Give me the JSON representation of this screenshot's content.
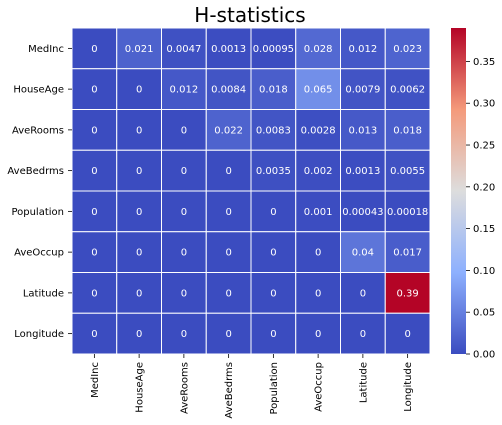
{
  "chart_data": {
    "type": "heatmap",
    "title": "H-statistics",
    "rows": [
      "MedInc",
      "HouseAge",
      "AveRooms",
      "AveBedrms",
      "Population",
      "AveOccup",
      "Latitude",
      "Longitude"
    ],
    "columns": [
      "MedInc",
      "HouseAge",
      "AveRooms",
      "AveBedrms",
      "Population",
      "AveOccup",
      "Latitude",
      "Longitude"
    ],
    "values": [
      [
        0,
        0.021,
        0.0047,
        0.0013,
        0.00095,
        0.028,
        0.012,
        0.023
      ],
      [
        0,
        0,
        0.012,
        0.0084,
        0.018,
        0.065,
        0.0079,
        0.0062
      ],
      [
        0,
        0,
        0,
        0.022,
        0.0083,
        0.0028,
        0.013,
        0.018
      ],
      [
        0,
        0,
        0,
        0,
        0.0035,
        0.002,
        0.0013,
        0.0055
      ],
      [
        0,
        0,
        0,
        0,
        0,
        0.001,
        0.00043,
        0.00018
      ],
      [
        0,
        0,
        0,
        0,
        0,
        0,
        0.04,
        0.017
      ],
      [
        0,
        0,
        0,
        0,
        0,
        0,
        0,
        0.39
      ],
      [
        0,
        0,
        0,
        0,
        0,
        0,
        0,
        0
      ]
    ],
    "labels": [
      [
        "0",
        "0.021",
        "0.0047",
        "0.0013",
        "0.00095",
        "0.028",
        "0.012",
        "0.023"
      ],
      [
        "0",
        "0",
        "0.012",
        "0.0084",
        "0.018",
        "0.065",
        "0.0079",
        "0.0062"
      ],
      [
        "0",
        "0",
        "0",
        "0.022",
        "0.0083",
        "0.0028",
        "0.013",
        "0.018"
      ],
      [
        "0",
        "0",
        "0",
        "0",
        "0.0035",
        "0.002",
        "0.0013",
        "0.0055"
      ],
      [
        "0",
        "0",
        "0",
        "0",
        "0",
        "0.001",
        "0.00043",
        "0.00018"
      ],
      [
        "0",
        "0",
        "0",
        "0",
        "0",
        "0",
        "0.04",
        "0.017"
      ],
      [
        "0",
        "0",
        "0",
        "0",
        "0",
        "0",
        "0",
        "0.39"
      ],
      [
        "0",
        "0",
        "0",
        "0",
        "0",
        "0",
        "0",
        "0"
      ]
    ],
    "colormap": "coolwarm",
    "vmin": 0,
    "vmax": 0.39,
    "colorbar_ticks": [
      0.0,
      0.05,
      0.1,
      0.15,
      0.2,
      0.25,
      0.3,
      0.35
    ],
    "colorbar_tick_labels": [
      "0.00",
      "0.05",
      "0.10",
      "0.15",
      "0.20",
      "0.25",
      "0.30",
      "0.35"
    ],
    "grid": false,
    "legend": "colorbar-right"
  }
}
